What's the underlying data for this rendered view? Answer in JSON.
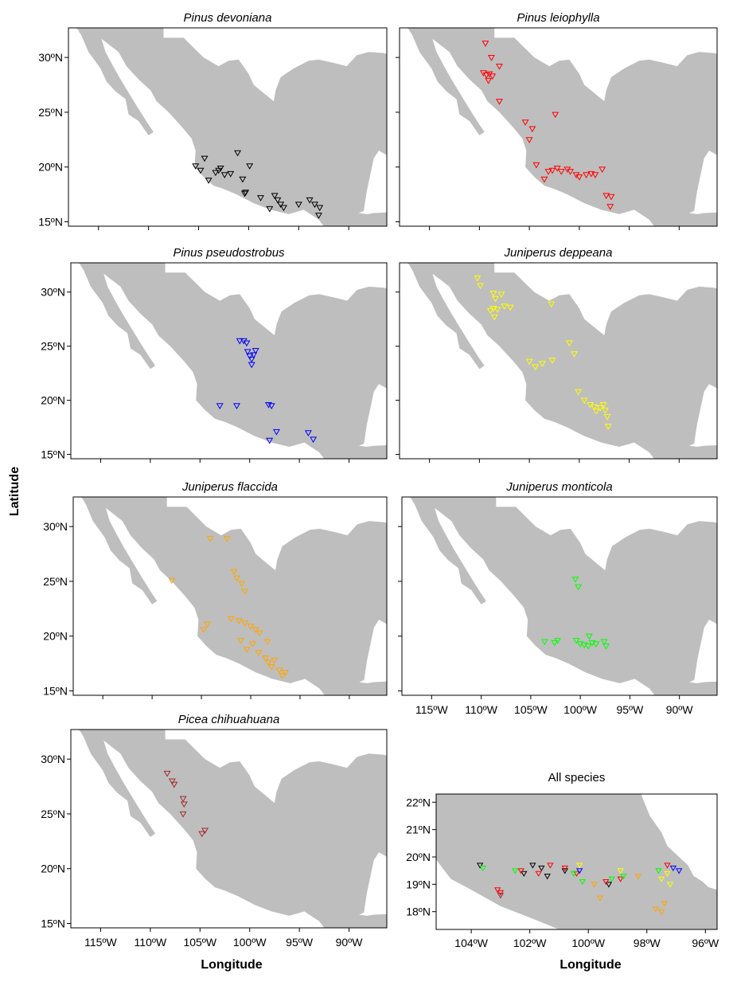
{
  "figure": {
    "y_axis_title": "Latitude",
    "x_axis_title_left": "Longitude",
    "x_axis_title_right": "Longitude",
    "land_color": "#bebebe",
    "background_color": "#ffffff"
  },
  "panels": [
    {
      "title": "Pinus devoniana",
      "italic": true,
      "marker_color": "#000000",
      "lat_ticks": [
        "30ºN",
        "25ºN",
        "20ºN",
        "15ºN"
      ],
      "lon_ticks": [],
      "points": [
        [
          -105.3,
          20.1
        ],
        [
          -104.8,
          19.7
        ],
        [
          -104.4,
          20.8
        ],
        [
          -104.0,
          18.8
        ],
        [
          -103.3,
          19.5
        ],
        [
          -103.0,
          19.7
        ],
        [
          -102.8,
          19.9
        ],
        [
          -102.4,
          19.3
        ],
        [
          -101.8,
          19.4
        ],
        [
          -101.1,
          21.3
        ],
        [
          -100.6,
          18.9
        ],
        [
          -100.4,
          17.6
        ],
        [
          -100.3,
          17.7
        ],
        [
          -99.9,
          20.1
        ],
        [
          -98.8,
          17.2
        ],
        [
          -97.9,
          16.2
        ],
        [
          -97.4,
          17.4
        ],
        [
          -97.1,
          17.0
        ],
        [
          -96.8,
          16.6
        ],
        [
          -96.5,
          16.3
        ],
        [
          -95.0,
          16.6
        ],
        [
          -93.9,
          17.0
        ],
        [
          -93.4,
          16.6
        ],
        [
          -93.0,
          15.6
        ],
        [
          -92.9,
          16.3
        ]
      ]
    },
    {
      "title": "Pinus leiophylla",
      "italic": true,
      "marker_color": "#ff0000",
      "lat_ticks": [],
      "lon_ticks": [],
      "points": [
        [
          -109.4,
          31.3
        ],
        [
          -108.8,
          30.0
        ],
        [
          -108.0,
          29.2
        ],
        [
          -109.6,
          28.6
        ],
        [
          -109.3,
          28.4
        ],
        [
          -109.0,
          28.5
        ],
        [
          -108.7,
          28.3
        ],
        [
          -109.1,
          27.9
        ],
        [
          -108.0,
          26.0
        ],
        [
          -105.4,
          24.1
        ],
        [
          -104.7,
          23.5
        ],
        [
          -102.4,
          24.8
        ],
        [
          -105.0,
          22.5
        ],
        [
          -104.3,
          20.2
        ],
        [
          -103.5,
          18.9
        ],
        [
          -103.1,
          19.6
        ],
        [
          -102.7,
          19.7
        ],
        [
          -102.2,
          19.9
        ],
        [
          -101.8,
          19.6
        ],
        [
          -101.2,
          19.8
        ],
        [
          -100.9,
          19.6
        ],
        [
          -100.3,
          19.3
        ],
        [
          -100.0,
          19.1
        ],
        [
          -99.3,
          19.3
        ],
        [
          -98.8,
          19.4
        ],
        [
          -98.4,
          19.3
        ],
        [
          -97.7,
          19.8
        ],
        [
          -97.3,
          17.4
        ],
        [
          -96.8,
          17.3
        ],
        [
          -96.9,
          16.4
        ]
      ]
    },
    {
      "title": "Pinus pseudostrobus",
      "italic": true,
      "marker_color": "#0000ff",
      "lat_ticks": [
        "30ºN",
        "25ºN",
        "20ºN",
        "15ºN"
      ],
      "lon_ticks": [],
      "points": [
        [
          -101.0,
          25.5
        ],
        [
          -100.6,
          25.5
        ],
        [
          -100.3,
          25.3
        ],
        [
          -100.2,
          24.5
        ],
        [
          -100.0,
          24.1
        ],
        [
          -99.8,
          23.8
        ],
        [
          -99.6,
          24.2
        ],
        [
          -99.4,
          24.6
        ],
        [
          -99.8,
          23.3
        ],
        [
          -103.0,
          19.5
        ],
        [
          -101.3,
          19.5
        ],
        [
          -98.1,
          19.6
        ],
        [
          -97.8,
          19.5
        ],
        [
          -98.0,
          16.3
        ],
        [
          -97.3,
          17.1
        ],
        [
          -94.1,
          17.0
        ],
        [
          -93.6,
          16.4
        ]
      ]
    },
    {
      "title": "Juniperus deppeana",
      "italic": true,
      "marker_color": "#ffff00",
      "lat_ticks": [],
      "lon_ticks": [],
      "points": [
        [
          -110.2,
          31.3
        ],
        [
          -109.9,
          30.6
        ],
        [
          -108.6,
          29.9
        ],
        [
          -108.4,
          29.4
        ],
        [
          -107.8,
          29.8
        ],
        [
          -107.5,
          28.7
        ],
        [
          -106.9,
          28.6
        ],
        [
          -108.9,
          28.3
        ],
        [
          -108.6,
          28.5
        ],
        [
          -108.5,
          27.7
        ],
        [
          -108.2,
          28.4
        ],
        [
          -102.8,
          28.9
        ],
        [
          -105.0,
          23.6
        ],
        [
          -104.4,
          23.1
        ],
        [
          -103.7,
          23.4
        ],
        [
          -102.7,
          23.7
        ],
        [
          -101.0,
          25.3
        ],
        [
          -100.5,
          24.3
        ],
        [
          -100.1,
          20.8
        ],
        [
          -99.5,
          20.0
        ],
        [
          -98.9,
          19.6
        ],
        [
          -98.5,
          19.4
        ],
        [
          -98.3,
          19.0
        ],
        [
          -97.9,
          19.3
        ],
        [
          -97.6,
          19.6
        ],
        [
          -97.4,
          19.1
        ],
        [
          -97.2,
          18.5
        ],
        [
          -97.1,
          17.6
        ]
      ]
    },
    {
      "title": "Juniperus flaccida",
      "italic": true,
      "marker_color": "#ffa500",
      "lat_ticks": [
        "30ºN",
        "25ºN",
        "20ºN",
        "15ºN"
      ],
      "lon_ticks": [],
      "points": [
        [
          -108.0,
          25.1
        ],
        [
          -104.1,
          28.9
        ],
        [
          -102.4,
          28.9
        ],
        [
          -101.7,
          25.9
        ],
        [
          -101.4,
          25.3
        ],
        [
          -100.9,
          24.8
        ],
        [
          -100.6,
          24.1
        ],
        [
          -102.0,
          21.6
        ],
        [
          -101.2,
          21.4
        ],
        [
          -100.6,
          21.2
        ],
        [
          -100.0,
          20.9
        ],
        [
          -99.5,
          20.6
        ],
        [
          -99.1,
          20.3
        ],
        [
          -101.0,
          19.6
        ],
        [
          -100.4,
          18.8
        ],
        [
          -99.8,
          19.3
        ],
        [
          -99.2,
          18.5
        ],
        [
          -98.5,
          18.0
        ],
        [
          -98.2,
          17.6
        ],
        [
          -97.9,
          17.2
        ],
        [
          -97.6,
          17.8
        ],
        [
          -97.1,
          16.9
        ],
        [
          -96.8,
          16.4
        ],
        [
          -96.5,
          16.7
        ],
        [
          -98.3,
          19.5
        ],
        [
          -104.8,
          20.6
        ],
        [
          -104.4,
          21.1
        ]
      ]
    },
    {
      "title": "Juniperus monticola",
      "italic": true,
      "marker_color": "#00ff00",
      "lat_ticks": [],
      "lon_ticks": [
        "115ºW",
        "110ºW",
        "105ºW",
        "100ºW",
        "95ºW",
        "90ºW"
      ],
      "points": [
        [
          -100.5,
          25.2
        ],
        [
          -100.2,
          24.5
        ],
        [
          -103.6,
          19.5
        ],
        [
          -102.6,
          19.4
        ],
        [
          -102.3,
          19.6
        ],
        [
          -100.4,
          19.6
        ],
        [
          -100.0,
          19.3
        ],
        [
          -99.6,
          19.2
        ],
        [
          -99.2,
          19.1
        ],
        [
          -99.1,
          20.0
        ],
        [
          -98.8,
          19.4
        ],
        [
          -98.4,
          19.3
        ],
        [
          -97.6,
          19.5
        ],
        [
          -97.4,
          19.1
        ]
      ]
    },
    {
      "title": "Picea chihuahuana",
      "italic": true,
      "marker_color": "#a52a2a",
      "lat_ticks": [
        "30ºN",
        "25ºN",
        "20ºN",
        "15ºN"
      ],
      "lon_ticks": [
        "115ºW",
        "110ºW",
        "105ºW",
        "100ºW",
        "95ºW",
        "90ºW"
      ],
      "points": [
        [
          -108.3,
          28.7
        ],
        [
          -107.8,
          28.0
        ],
        [
          -107.6,
          27.7
        ],
        [
          -106.7,
          26.4
        ],
        [
          -106.6,
          25.9
        ],
        [
          -106.7,
          25.0
        ],
        [
          -104.5,
          23.5
        ],
        [
          -104.8,
          23.2
        ]
      ]
    },
    {
      "title": "All species",
      "italic": false,
      "lat_ticks": [
        "22ºN",
        "21ºN",
        "20ºN",
        "19ºN",
        "18ºN"
      ],
      "lon_ticks": [
        "104ºW",
        "102ºW",
        "100ºW",
        "98ºW",
        "96ºW"
      ],
      "points_by_color": [
        {
          "color": "#000000",
          "points": [
            [
              -103.7,
              19.7
            ],
            [
              -102.2,
              19.4
            ],
            [
              -101.9,
              19.7
            ],
            [
              -101.6,
              19.6
            ],
            [
              -101.4,
              19.3
            ],
            [
              -100.8,
              19.5
            ],
            [
              -99.3,
              19.0
            ]
          ]
        },
        {
          "color": "#ff0000",
          "points": [
            [
              -103.1,
              18.8
            ],
            [
              -103.0,
              18.7
            ],
            [
              -102.3,
              19.5
            ],
            [
              -101.7,
              19.4
            ],
            [
              -101.3,
              19.7
            ],
            [
              -100.8,
              19.6
            ],
            [
              -100.4,
              19.4
            ],
            [
              -99.4,
              19.1
            ],
            [
              -98.9,
              19.2
            ],
            [
              -97.3,
              19.7
            ]
          ]
        },
        {
          "color": "#0000ff",
          "points": [
            [
              -97.1,
              19.6
            ],
            [
              -96.9,
              19.5
            ],
            [
              -100.3,
              19.5
            ]
          ]
        },
        {
          "color": "#ffff00",
          "points": [
            [
              -100.3,
              19.7
            ],
            [
              -97.5,
              19.2
            ],
            [
              -97.3,
              19.4
            ],
            [
              -97.2,
              19.0
            ],
            [
              -98.9,
              19.5
            ]
          ]
        },
        {
          "color": "#ffa500",
          "points": [
            [
              -97.7,
              18.1
            ],
            [
              -97.5,
              18.0
            ],
            [
              -99.8,
              19.0
            ],
            [
              -99.6,
              18.5
            ],
            [
              -98.3,
              19.3
            ],
            [
              -97.4,
              18.3
            ]
          ]
        },
        {
          "color": "#00ff00",
          "points": [
            [
              -103.6,
              19.6
            ],
            [
              -102.5,
              19.5
            ],
            [
              -100.5,
              19.4
            ],
            [
              -100.2,
              19.1
            ],
            [
              -99.2,
              19.2
            ],
            [
              -98.8,
              19.3
            ],
            [
              -97.6,
              19.5
            ]
          ]
        },
        {
          "color": "#a52a2a",
          "points": [
            [
              -103.0,
              18.6
            ]
          ]
        }
      ]
    }
  ]
}
